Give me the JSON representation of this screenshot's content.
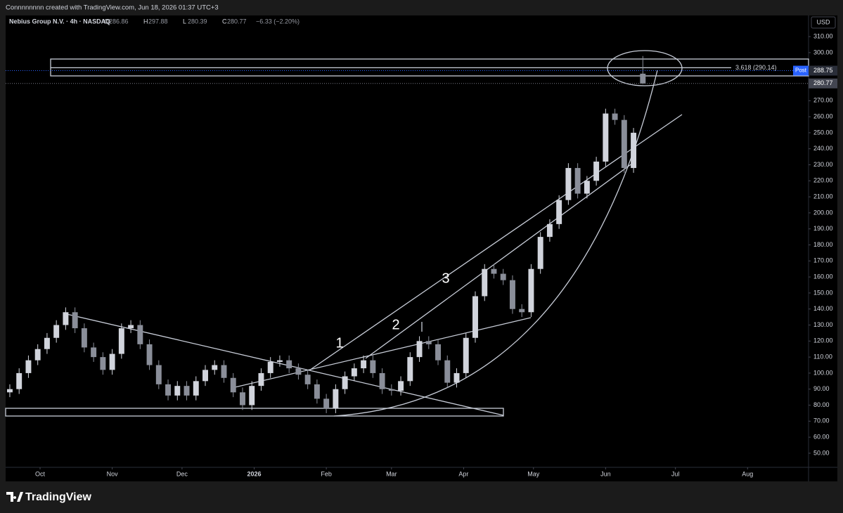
{
  "header": {
    "credit": "Connnnnnnn created with TradingView.com, Jun 18, 2026 01:37 UTC+3",
    "logo": "TradingView"
  },
  "chart_data": {
    "type": "candlestick",
    "symbol": "Nebius Group N.V. · 4h · NASDAQ",
    "ohlc_letters": [
      "O",
      "H",
      "L",
      "C"
    ],
    "change": "−6.33 (−2.20%)",
    "currency": "USD",
    "fib_label": "3.618 (290.14)",
    "post_label": "Post",
    "post_price": 288.75,
    "annotations": [
      "1",
      "2",
      "3"
    ],
    "up_color": "#d1d4dc",
    "down_color": "#8a8e99",
    "x": [
      -13,
      -9,
      -5,
      -1,
      3,
      7,
      11,
      15,
      19,
      23,
      27,
      31,
      35,
      39,
      43,
      47,
      51,
      55,
      59,
      63,
      67,
      71,
      75,
      79,
      83,
      87,
      91,
      95,
      99,
      103,
      107,
      111,
      115,
      119,
      123,
      127,
      131,
      135,
      139,
      143,
      147,
      151,
      155,
      159,
      163,
      167,
      171,
      175,
      179,
      183,
      187,
      191,
      195,
      199,
      203,
      207,
      211,
      215,
      219,
      223,
      227,
      231,
      235,
      239,
      243,
      247,
      251,
      255,
      259
    ],
    "open": [
      88,
      90,
      100,
      108,
      115,
      122,
      130,
      138,
      128,
      116,
      110,
      102,
      112,
      128,
      130,
      118,
      105,
      93,
      86,
      92,
      86,
      95,
      102,
      105,
      97,
      88,
      80,
      92,
      100,
      107,
      108,
      103,
      99,
      93,
      84,
      78,
      90,
      98,
      103,
      108,
      100,
      90,
      89,
      95,
      110,
      120,
      118,
      108,
      94,
      100,
      122,
      148,
      165,
      162,
      158,
      140,
      138,
      165,
      185,
      193,
      208,
      228,
      212,
      220,
      232,
      262,
      258,
      228,
      286.86
    ],
    "high": [
      93,
      103,
      111,
      118,
      125,
      133,
      141,
      141,
      131,
      119,
      113,
      115,
      131,
      133,
      133,
      121,
      108,
      96,
      95,
      95,
      98,
      105,
      108,
      108,
      100,
      91,
      95,
      103,
      110,
      111,
      111,
      106,
      102,
      96,
      87,
      93,
      101,
      106,
      111,
      111,
      103,
      93,
      98,
      113,
      123,
      123,
      121,
      111,
      103,
      125,
      151,
      168,
      168,
      165,
      161,
      143,
      168,
      188,
      196,
      211,
      231,
      231,
      223,
      235,
      265,
      265,
      261,
      253,
      297.88
    ],
    "low": [
      85,
      87,
      97,
      105,
      112,
      119,
      127,
      125,
      113,
      107,
      99,
      99,
      109,
      125,
      115,
      102,
      90,
      83,
      83,
      83,
      83,
      92,
      99,
      94,
      85,
      77,
      77,
      89,
      97,
      104,
      100,
      96,
      90,
      81,
      75,
      75,
      87,
      95,
      100,
      97,
      87,
      86,
      86,
      92,
      107,
      115,
      105,
      91,
      91,
      97,
      119,
      145,
      159,
      155,
      137,
      135,
      135,
      162,
      182,
      190,
      205,
      209,
      209,
      217,
      229,
      255,
      225,
      225,
      280.39
    ],
    "close": [
      90,
      100,
      108,
      115,
      122,
      130,
      138,
      128,
      116,
      110,
      102,
      112,
      128,
      130,
      118,
      105,
      93,
      86,
      92,
      86,
      95,
      102,
      105,
      97,
      88,
      80,
      92,
      100,
      107,
      108,
      103,
      99,
      93,
      84,
      78,
      90,
      98,
      103,
      108,
      100,
      90,
      89,
      95,
      110,
      120,
      118,
      108,
      94,
      100,
      122,
      148,
      165,
      162,
      158,
      140,
      138,
      165,
      185,
      193,
      208,
      228,
      212,
      220,
      232,
      262,
      258,
      228,
      250,
      280.77
    ],
    "xlim": [
      -14.8,
      330.2
    ],
    "xticks": [
      {
        "value": 0,
        "label": "Oct"
      },
      {
        "value": 31,
        "label": "Nov"
      },
      {
        "value": 61,
        "label": "Dec"
      },
      {
        "value": 92,
        "label": "2026"
      },
      {
        "value": 123,
        "label": "Feb"
      },
      {
        "value": 151,
        "label": "Mar"
      },
      {
        "value": 182,
        "label": "Apr"
      },
      {
        "value": 212,
        "label": "May"
      },
      {
        "value": 243,
        "label": "Jun"
      },
      {
        "value": 273,
        "label": "Jul"
      },
      {
        "value": 304,
        "label": "Aug"
      }
    ],
    "ylim": [
      41.2,
      315.3
    ],
    "yticks": [
      {
        "value": 50,
        "label": "50.00"
      },
      {
        "value": 60,
        "label": "60.00"
      },
      {
        "value": 70,
        "label": "70.00"
      },
      {
        "value": 80,
        "label": "80.00"
      },
      {
        "value": 90,
        "label": "90.00"
      },
      {
        "value": 100,
        "label": "100.00"
      },
      {
        "value": 110,
        "label": "110.00"
      },
      {
        "value": 120,
        "label": "120.00"
      },
      {
        "value": 130,
        "label": "130.00"
      },
      {
        "value": 140,
        "label": "140.00"
      },
      {
        "value": 150,
        "label": "150.00"
      },
      {
        "value": 160,
        "label": "160.00"
      },
      {
        "value": 170,
        "label": "170.00"
      },
      {
        "value": 180,
        "label": "180.00"
      },
      {
        "value": 190,
        "label": "190.00"
      },
      {
        "value": 200,
        "label": "200.00"
      },
      {
        "value": 210,
        "label": "210.00"
      },
      {
        "value": 220,
        "label": "220.00"
      },
      {
        "value": 230,
        "label": "230.00"
      },
      {
        "value": 240,
        "label": "240.00"
      },
      {
        "value": 250,
        "label": "250.00"
      },
      {
        "value": 260,
        "label": "260.00"
      },
      {
        "value": 270,
        "label": "270.00"
      },
      {
        "value": 280,
        "label": "280.00"
      },
      {
        "value": 290,
        "label": "290.00"
      },
      {
        "value": 300,
        "label": "300.00"
      },
      {
        "value": 310,
        "label": "310.00"
      }
    ],
    "grid": false
  }
}
